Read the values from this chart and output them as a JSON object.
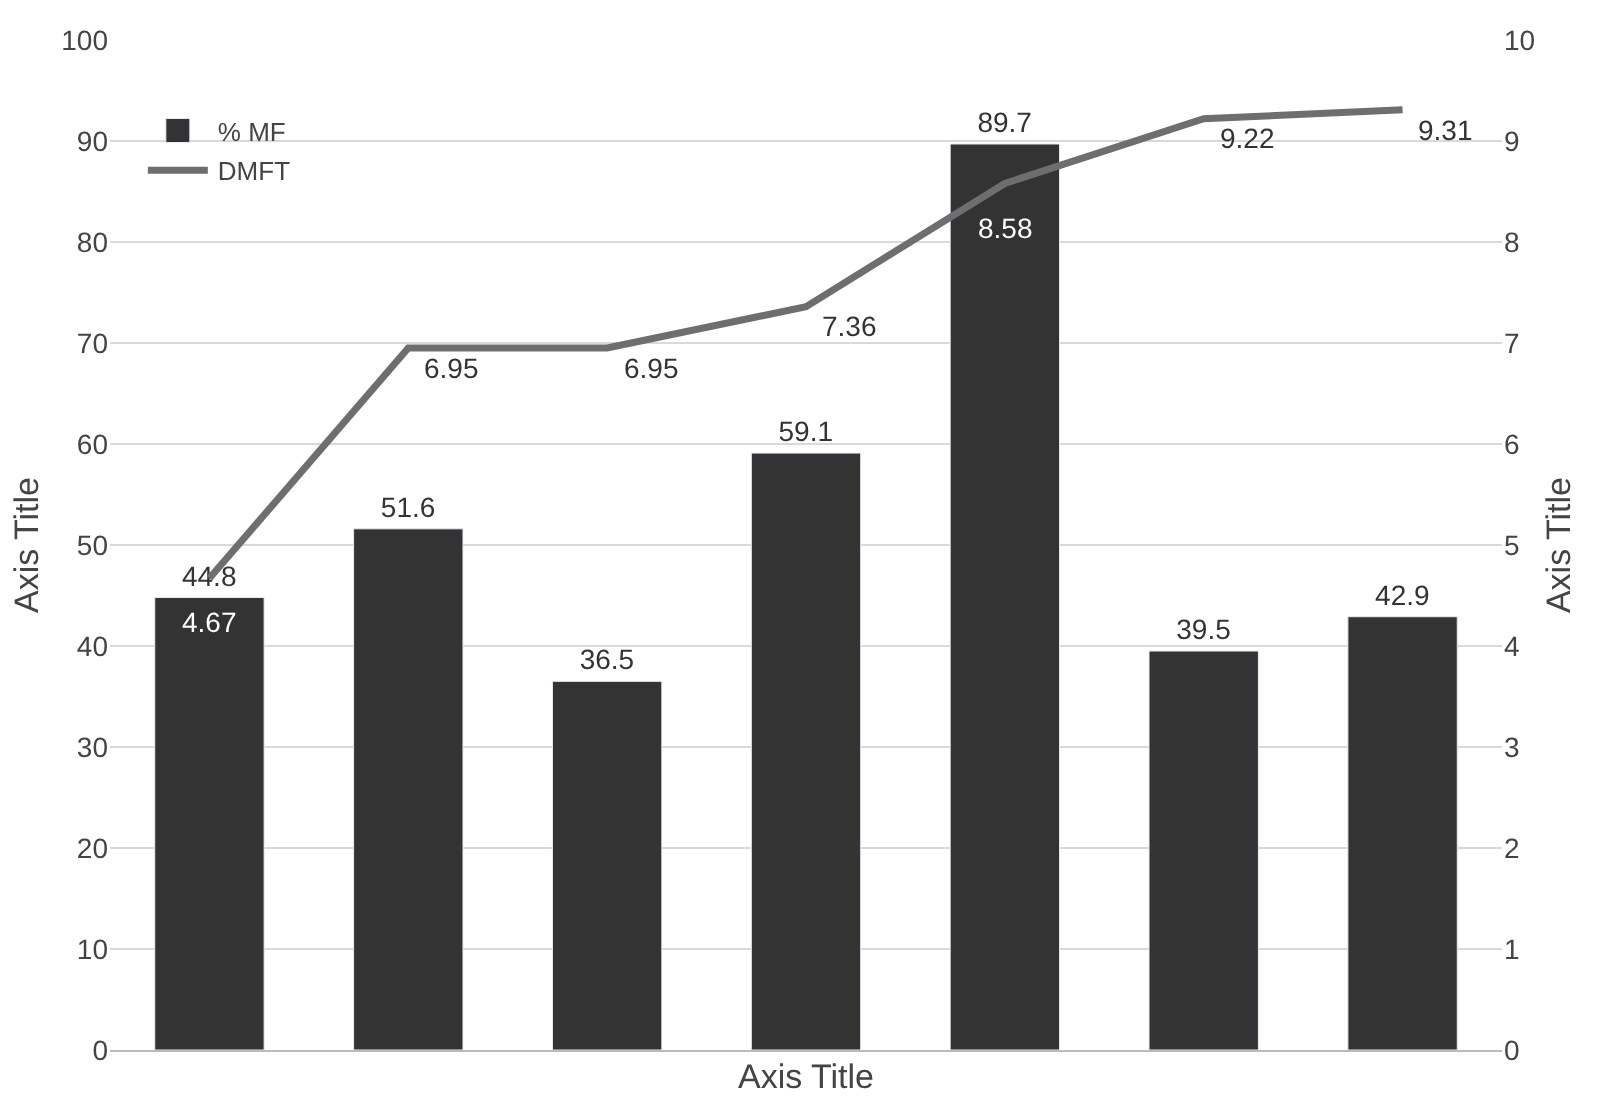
{
  "chart_data": {
    "type": "bar",
    "xlabel": "Axis Title",
    "ylabel": "Axis Title",
    "y2label": "Axis Title",
    "categories": [
      null,
      null,
      null,
      null,
      null,
      null,
      null
    ],
    "series": [
      {
        "name": "% MF",
        "color": "#333333",
        "values": [
          44.8,
          51.6,
          36.5,
          59.1,
          89.7,
          39.5,
          42.9
        ]
      },
      {
        "name": "DMFT",
        "type": "line",
        "axis": "y2",
        "color": "#6e6e6e",
        "values": [
          4.67,
          6.95,
          6.95,
          7.36,
          8.58,
          9.22,
          9.31
        ]
      }
    ],
    "ylim": [
      0,
      100
    ],
    "yticks": [
      0,
      10,
      20,
      30,
      40,
      50,
      60,
      70,
      80,
      90,
      100
    ],
    "y2lim": [
      0,
      10
    ],
    "y2ticks": [
      0,
      1,
      2,
      3,
      4,
      5,
      6,
      7,
      8,
      9,
      10
    ],
    "data_labels": true,
    "grid": "y",
    "legend": "top left",
    "marker": "none",
    "line_style": "solid"
  }
}
